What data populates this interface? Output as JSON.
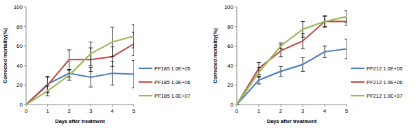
{
  "chart_data": [
    {
      "type": "line",
      "x_label": "Days after treatment",
      "y_label": "Corrected mortality(%)",
      "x": [
        0,
        1,
        2,
        3,
        4,
        5
      ],
      "xlim": [
        0,
        5
      ],
      "xticks": [
        0,
        1,
        2,
        3,
        4,
        5
      ],
      "ylim": [
        0,
        100
      ],
      "yticks": [
        0,
        20,
        40,
        60,
        80,
        100
      ],
      "grid": false,
      "legend": "right",
      "marker": "none",
      "series": [
        {
          "name": "PF185 1.0E+05",
          "color": "#4f81bd",
          "values": [
            0,
            21,
            32,
            28,
            32,
            31
          ],
          "errors": [
            0,
            8,
            4,
            10,
            12,
            14
          ]
        },
        {
          "name": "PF185 1.0E+06",
          "color": "#c0504d",
          "values": [
            0,
            20,
            46,
            46,
            49,
            62
          ],
          "errors": [
            0,
            8,
            10,
            12,
            10,
            12
          ]
        },
        {
          "name": "PF185 1.0E+07",
          "color": "#9bbb59",
          "values": [
            0,
            14,
            30,
            52,
            64,
            70
          ],
          "errors": [
            0,
            5,
            5,
            12,
            15,
            12
          ]
        }
      ]
    },
    {
      "type": "line",
      "x_label": "Days after treatment",
      "y_label": "Corrected mortality(%)",
      "x": [
        0,
        1,
        2,
        3,
        4,
        5
      ],
      "xlim": [
        0,
        5
      ],
      "xticks": [
        0,
        1,
        2,
        3,
        4,
        5
      ],
      "ylim": [
        0,
        100
      ],
      "yticks": [
        0,
        20,
        40,
        60,
        80,
        100
      ],
      "grid": false,
      "legend": "right",
      "marker": "none",
      "series": [
        {
          "name": "PF212 1.0E+05",
          "color": "#4f81bd",
          "values": [
            0,
            25,
            34,
            41,
            54,
            57
          ],
          "errors": [
            0,
            4,
            5,
            7,
            6,
            10
          ]
        },
        {
          "name": "PF212 1.0E+06",
          "color": "#c0504d",
          "values": [
            0,
            37,
            55,
            65,
            85,
            85
          ],
          "errors": [
            0,
            6,
            6,
            8,
            6,
            4
          ]
        },
        {
          "name": "PF212 1.0E+07",
          "color": "#9bbb59",
          "values": [
            0,
            33,
            60,
            77,
            85,
            90
          ],
          "errors": [
            0,
            5,
            3,
            8,
            5,
            6
          ]
        }
      ]
    }
  ]
}
